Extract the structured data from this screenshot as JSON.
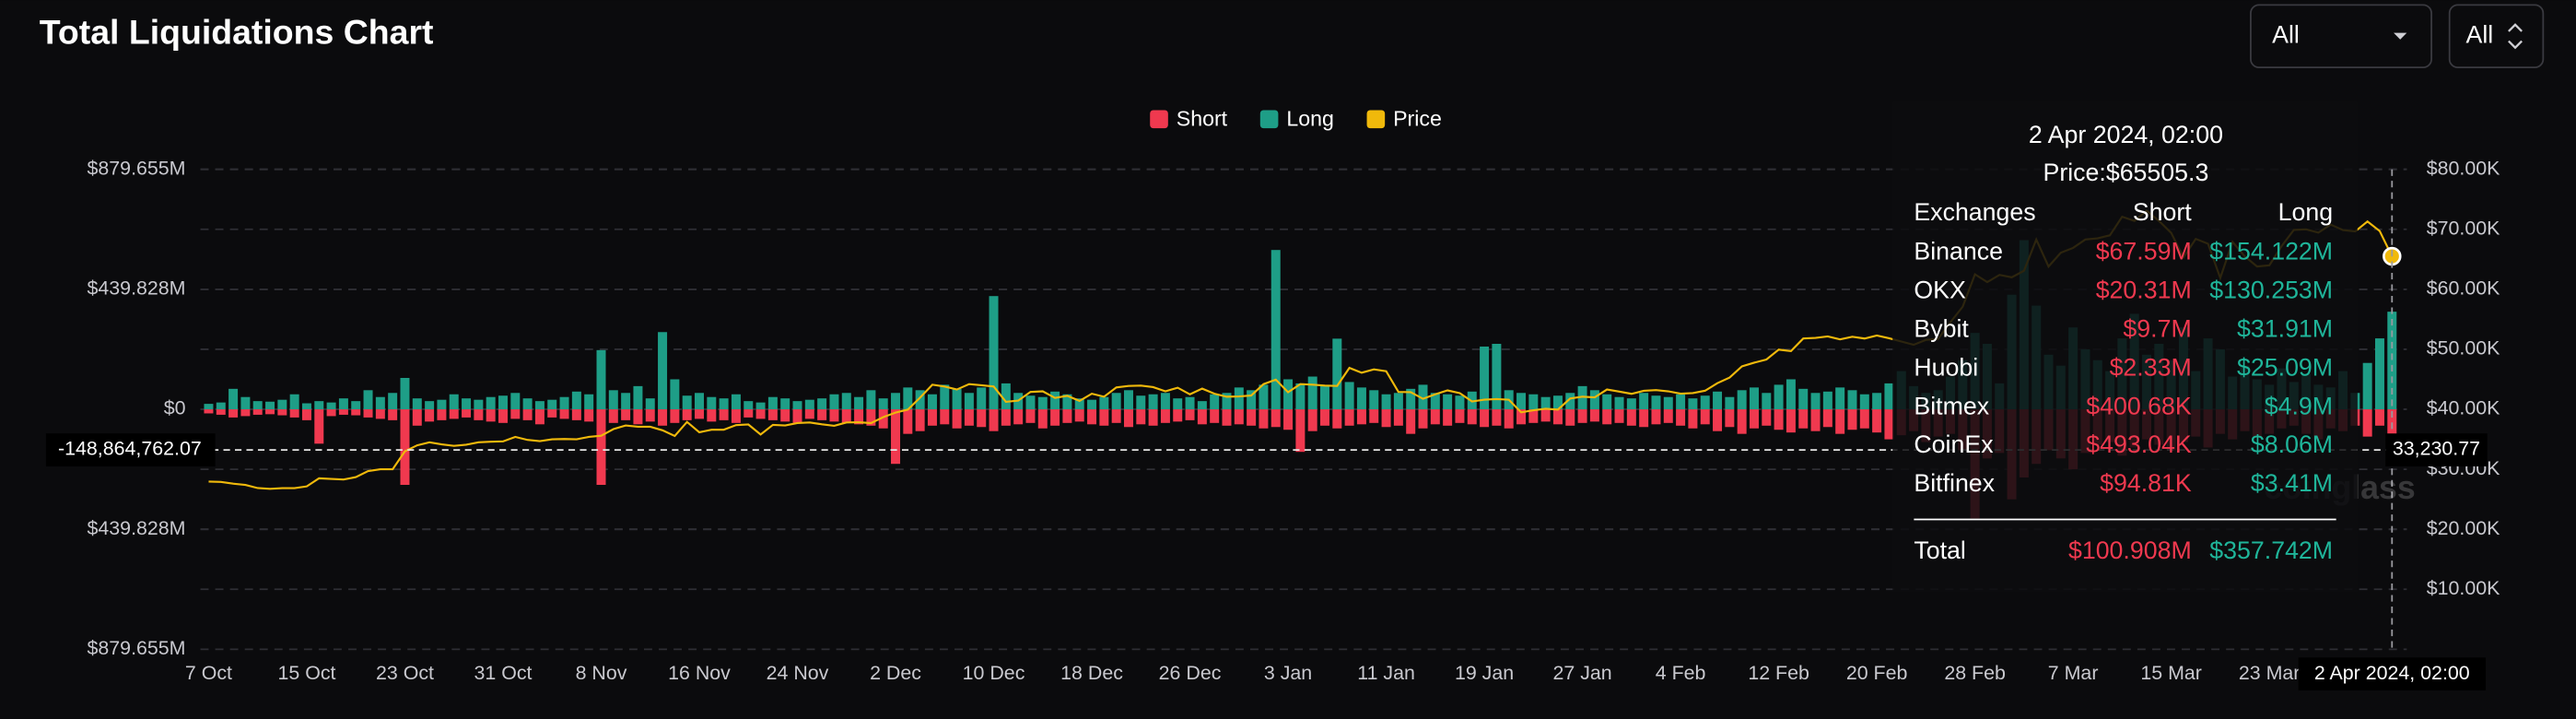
{
  "chart_data": {
    "type": "bar",
    "title": "Total Liquidations Chart",
    "filters": [
      "All",
      "All"
    ],
    "watermark": "coinglass",
    "grid": true,
    "categories": [
      "7 Oct",
      null,
      null,
      null,
      null,
      null,
      null,
      null,
      "15 Oct",
      null,
      null,
      null,
      null,
      null,
      null,
      null,
      "23 Oct",
      null,
      null,
      null,
      null,
      null,
      null,
      null,
      "31 Oct",
      null,
      null,
      null,
      null,
      null,
      null,
      null,
      "8 Nov",
      null,
      null,
      null,
      null,
      null,
      null,
      null,
      "16 Nov",
      null,
      null,
      null,
      null,
      null,
      null,
      null,
      "24 Nov",
      null,
      null,
      null,
      null,
      null,
      null,
      null,
      "2 Dec",
      null,
      null,
      null,
      null,
      null,
      null,
      null,
      "10 Dec",
      null,
      null,
      null,
      null,
      null,
      null,
      null,
      "18 Dec",
      null,
      null,
      null,
      null,
      null,
      null,
      null,
      "26 Dec",
      null,
      null,
      null,
      null,
      null,
      null,
      null,
      "3 Jan",
      null,
      null,
      null,
      null,
      null,
      null,
      null,
      "11 Jan",
      null,
      null,
      null,
      null,
      null,
      null,
      null,
      "19 Jan",
      null,
      null,
      null,
      null,
      null,
      null,
      null,
      "27 Jan",
      null,
      null,
      null,
      null,
      null,
      null,
      null,
      "4 Feb",
      null,
      null,
      null,
      null,
      null,
      null,
      null,
      "12 Feb",
      null,
      null,
      null,
      null,
      null,
      null,
      null,
      "20 Feb",
      null,
      null,
      null,
      null,
      null,
      null,
      null,
      "28 Feb",
      null,
      null,
      null,
      null,
      null,
      null,
      null,
      "7 Mar",
      null,
      null,
      null,
      null,
      null,
      null,
      null,
      "15 Mar",
      null,
      null,
      null,
      null,
      null,
      null,
      null,
      "23 Mar",
      null,
      null,
      null,
      null,
      null,
      null,
      null,
      null,
      null,
      "2 Apr 2024, 02:00"
    ],
    "ylim": [
      -879.655,
      879.655
    ],
    "yticks": [
      {
        "value": 879.655,
        "label": "$879.655M"
      },
      {
        "value": 439.828,
        "label": "$439.828M"
      },
      {
        "value": 0,
        "label": "$0"
      },
      {
        "value": -439.828,
        "label": "$439.828M"
      },
      {
        "value": -879.655,
        "label": "$879.655M"
      }
    ],
    "y2lim": [
      0,
      80000
    ],
    "y2ticks": [
      {
        "value": 80000,
        "label": "$80.00K"
      },
      {
        "value": 70000,
        "label": "$70.00K"
      },
      {
        "value": 60000,
        "label": "$60.00K"
      },
      {
        "value": 50000,
        "label": "$50.00K"
      },
      {
        "value": 40000,
        "label": "$40.00K"
      },
      {
        "value": 30000,
        "label": "$30.00K"
      },
      {
        "value": 20000,
        "label": "$20.00K"
      },
      {
        "value": 10000,
        "label": "$10.00K"
      }
    ],
    "series": [
      {
        "name": "Short",
        "type": "bar",
        "color": "#f0394f",
        "values": [
          -15,
          -20,
          -30,
          -25,
          -20,
          -18,
          -22,
          -30,
          -40,
          -126,
          -25,
          -20,
          -22,
          -30,
          -35,
          -40,
          -277,
          -60,
          -45,
          -40,
          -35,
          -30,
          -40,
          -45,
          -50,
          -35,
          -40,
          -55,
          -30,
          -35,
          -40,
          -45,
          -277,
          -50,
          -40,
          -55,
          -45,
          -60,
          -50,
          -40,
          -35,
          -45,
          -40,
          -50,
          -30,
          -35,
          -40,
          -45,
          -50,
          -35,
          -40,
          -45,
          -50,
          -55,
          -60,
          -70,
          -200,
          -90,
          -80,
          -60,
          -55,
          -70,
          -60,
          -65,
          -80,
          -60,
          -55,
          -50,
          -70,
          -60,
          -50,
          -45,
          -55,
          -60,
          -50,
          -65,
          -55,
          -60,
          -50,
          -45,
          -40,
          -55,
          -50,
          -60,
          -55,
          -60,
          -70,
          -65,
          -75,
          -156,
          -80,
          -60,
          -70,
          -60,
          -55,
          -50,
          -65,
          -60,
          -90,
          -70,
          -55,
          -60,
          -50,
          -55,
          -65,
          -60,
          -70,
          -55,
          -50,
          -45,
          -55,
          -60,
          -50,
          -45,
          -55,
          -50,
          -60,
          -65,
          -55,
          -50,
          -60,
          -70,
          -55,
          -80,
          -65,
          -90,
          -70,
          -60,
          -75,
          -85,
          -70,
          -80,
          -65,
          -90,
          -75,
          -70,
          -85,
          -110,
          -95,
          -80,
          -120,
          -100,
          -90,
          -150,
          -400,
          -180,
          -160,
          -330,
          -250,
          -200,
          -150,
          -180,
          -220,
          -160,
          -130,
          -120,
          -170,
          -140,
          -110,
          -130,
          -150,
          -120,
          -100,
          -140,
          -90,
          -110,
          -80,
          -100,
          -90,
          -70,
          -60,
          -90,
          -110,
          -70,
          -80,
          -60,
          -100,
          -60,
          -100.908
        ]
      },
      {
        "name": "Long",
        "type": "bar",
        "color": "#1e9e87",
        "values": [
          20,
          25,
          75,
          45,
          30,
          28,
          35,
          55,
          22,
          30,
          25,
          40,
          30,
          70,
          45,
          60,
          115,
          40,
          30,
          35,
          55,
          40,
          35,
          45,
          50,
          60,
          40,
          30,
          35,
          45,
          65,
          55,
          217,
          70,
          60,
          85,
          40,
          283,
          110,
          50,
          60,
          45,
          40,
          55,
          30,
          25,
          45,
          40,
          30,
          35,
          40,
          55,
          60,
          45,
          70,
          40,
          60,
          80,
          70,
          55,
          90,
          75,
          60,
          80,
          415,
          95,
          60,
          50,
          45,
          65,
          55,
          40,
          35,
          45,
          60,
          70,
          50,
          55,
          60,
          40,
          45,
          30,
          55,
          60,
          80,
          70,
          90,
          584,
          110,
          95,
          120,
          85,
          259,
          100,
          80,
          70,
          55,
          60,
          75,
          90,
          60,
          55,
          50,
          65,
          230,
          240,
          70,
          60,
          55,
          45,
          50,
          60,
          85,
          70,
          55,
          45,
          40,
          60,
          50,
          45,
          55,
          40,
          50,
          65,
          45,
          70,
          80,
          60,
          90,
          110,
          75,
          60,
          65,
          80,
          70,
          55,
          60,
          95,
          140,
          85,
          60,
          70,
          120,
          180,
          280,
          240,
          95,
          420,
          620,
          380,
          200,
          160,
          300,
          220,
          180,
          140,
          260,
          350,
          200,
          240,
          180,
          300,
          140,
          260,
          220,
          120,
          160,
          110,
          90,
          150,
          100,
          130,
          90,
          80,
          140,
          60,
          170,
          260,
          357.742
        ]
      },
      {
        "name": "Price",
        "type": "line",
        "axis": "y2",
        "color": "#f0b90b",
        "values": [
          27950,
          27900,
          27600,
          27400,
          26870,
          26750,
          26860,
          26860,
          27150,
          28500,
          28400,
          28300,
          28700,
          29700,
          30000,
          30000,
          33000,
          34000,
          34500,
          34150,
          33900,
          34100,
          34500,
          34600,
          34650,
          35400,
          34900,
          34700,
          35000,
          35050,
          35000,
          35400,
          35600,
          36700,
          37300,
          37100,
          37100,
          36500,
          35550,
          37900,
          36170,
          36600,
          36600,
          37370,
          37470,
          35800,
          37400,
          37300,
          37700,
          37800,
          37500,
          37250,
          37800,
          37850,
          37700,
          38700,
          39450,
          39950,
          41950,
          44100,
          43800,
          43300,
          44200,
          44000,
          43800,
          41250,
          41450,
          42900,
          43000,
          41900,
          42250,
          41400,
          42600,
          42100,
          43650,
          43900,
          43950,
          43700,
          43000,
          43600,
          42500,
          43450,
          42600,
          42100,
          42150,
          42300,
          44200,
          44950,
          42850,
          44200,
          44100,
          43950,
          43900,
          46900,
          46100,
          46650,
          46350,
          42900,
          42850,
          41750,
          42500,
          43150,
          42700,
          41300,
          41600,
          41700,
          41600,
          39500,
          39850,
          40100,
          39950,
          41800,
          42100,
          42000,
          43300,
          42950,
          42580,
          43080,
          43200,
          43000,
          42600,
          42700,
          43100,
          44350,
          45300,
          47150,
          47770,
          48300,
          49950,
          49700,
          51800,
          51900,
          52150,
          51650,
          52100,
          51800,
          52300,
          51850,
          51300,
          50750,
          51570,
          51730,
          54500,
          57100,
          62500,
          61200,
          62400,
          62000,
          63100,
          68300,
          63800,
          66100,
          66900,
          68300,
          68500,
          69000,
          72100,
          71400,
          73100,
          71400,
          69400,
          65300,
          68400,
          67600,
          61900,
          67900,
          65500,
          63800,
          64000,
          67200,
          69900,
          69990,
          69450,
          70780,
          69880,
          69650,
          71300,
          69700,
          65505.3
        ]
      }
    ],
    "crosshair": {
      "y": {
        "value": -148.86476207,
        "label": "-148,864,762.07"
      },
      "y2": {
        "value": 33230.77,
        "label": "33,230.77"
      }
    },
    "tooltip": {
      "title": "2 Apr 2024, 02:00",
      "price": {
        "value": 65505.3,
        "label": "Price:$65505.3"
      },
      "columns": [
        "Exchanges",
        "Short",
        "Long"
      ],
      "rows": [
        [
          "Binance",
          "$67.59M",
          "$154.122M"
        ],
        [
          "OKX",
          "$20.31M",
          "$130.253M"
        ],
        [
          "Bybit",
          "$9.7M",
          "$31.91M"
        ],
        [
          "Huobi",
          "$2.33M",
          "$25.09M"
        ],
        [
          "Bitmex",
          "$400.68K",
          "$4.9M"
        ],
        [
          "CoinEx",
          "$493.04K",
          "$8.06M"
        ],
        [
          "Bitfinex",
          "$94.81K",
          "$3.41M"
        ]
      ],
      "total": [
        "Total",
        "$100.908M",
        "$357.742M"
      ]
    }
  }
}
